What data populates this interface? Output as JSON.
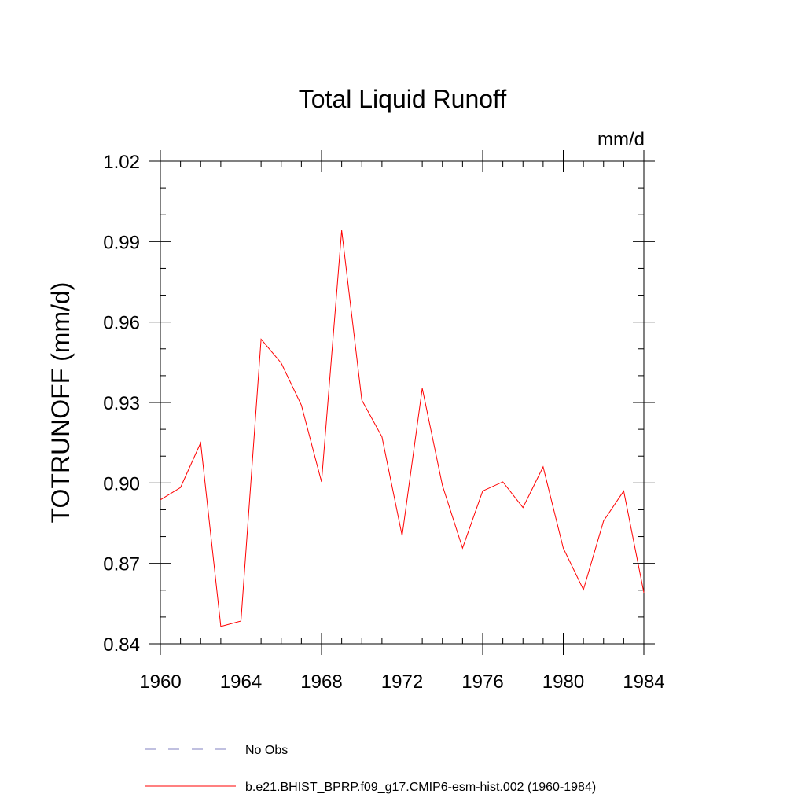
{
  "chart_data": {
    "type": "line",
    "title": "Total Liquid Runoff",
    "units": "mm/d",
    "ylabel": "TOTRUNOFF  (mm/d)",
    "xlabel": "",
    "xlim": [
      1960,
      1984
    ],
    "ylim": [
      0.84,
      1.02
    ],
    "x_ticks": [
      "1960",
      "1964",
      "1968",
      "1972",
      "1976",
      "1980",
      "1984"
    ],
    "y_ticks": [
      "0.84",
      "0.87",
      "0.90",
      "0.93",
      "0.96",
      "0.99",
      "1.02"
    ],
    "grid": false,
    "legend_position": "bottom",
    "series": [
      {
        "name": "b.e21.BHIST_BPRP.f09_g17.CMIP6-esm-hist.002 (1960-1984)",
        "color": "#ff0000",
        "style": "solid",
        "x": [
          1960,
          1961,
          1962,
          1963,
          1964,
          1965,
          1966,
          1967,
          1968,
          1969,
          1970,
          1971,
          1972,
          1973,
          1974,
          1975,
          1976,
          1977,
          1978,
          1979,
          1980,
          1981,
          1982,
          1983,
          1984
        ],
        "y": [
          0.8937,
          0.8983,
          0.915,
          0.8465,
          0.8485,
          0.9536,
          0.9447,
          0.929,
          0.9004,
          0.9942,
          0.9309,
          0.9172,
          0.8803,
          0.9353,
          0.8991,
          0.8757,
          0.897,
          0.9004,
          0.8908,
          0.906,
          0.8757,
          0.8602,
          0.8858,
          0.897,
          0.8591
        ]
      }
    ],
    "legend": [
      {
        "label": "No Obs",
        "color": "#8080c0",
        "style": "dashed"
      },
      {
        "label": "b.e21.BHIST_BPRP.f09_g17.CMIP6-esm-hist.002 (1960-1984)",
        "color": "#ff0000",
        "style": "solid"
      }
    ]
  }
}
